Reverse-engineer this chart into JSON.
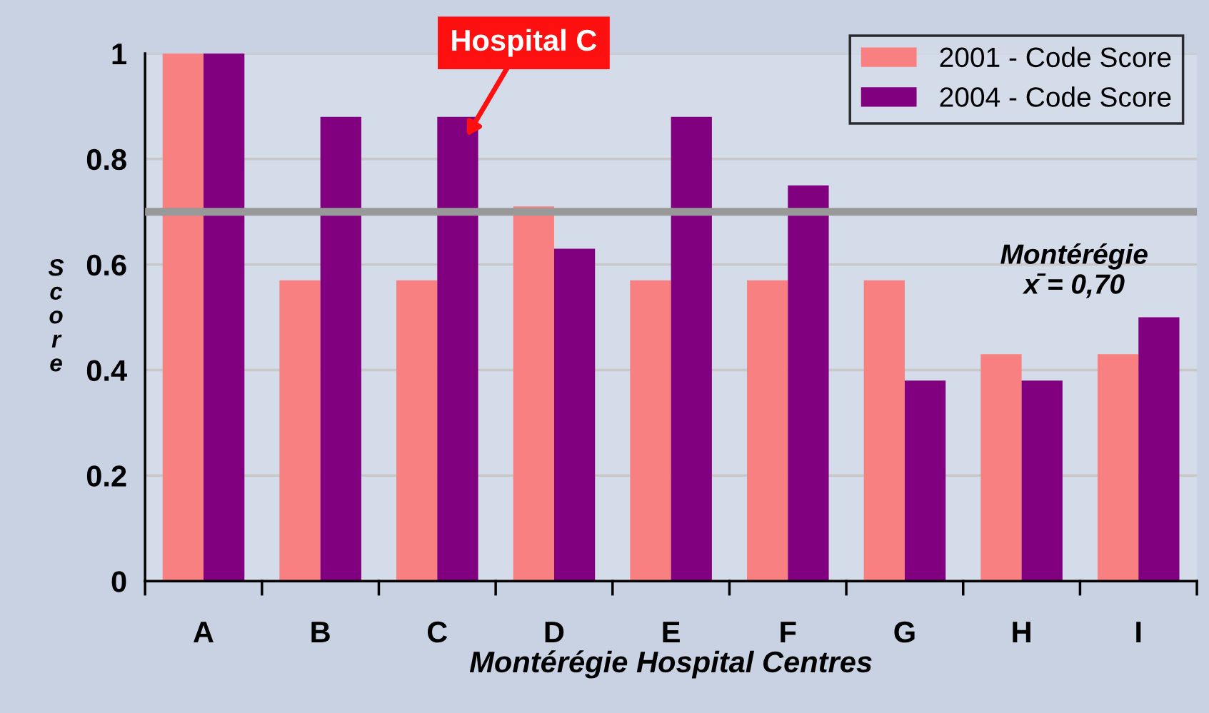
{
  "chart_data": {
    "type": "bar",
    "xlabel": "Montérégie Hospital Centres",
    "ylabel": "Score",
    "categories": [
      "A",
      "B",
      "C",
      "D",
      "E",
      "F",
      "G",
      "H",
      "I"
    ],
    "series": [
      {
        "name": "2001 - Code Score",
        "color": "#f98080",
        "values": [
          1.0,
          0.57,
          0.57,
          0.71,
          0.57,
          0.57,
          0.57,
          0.43,
          0.43
        ]
      },
      {
        "name": "2004 - Code Score",
        "color": "#800080",
        "values": [
          1.0,
          0.88,
          0.88,
          0.63,
          0.88,
          0.75,
          0.38,
          0.38,
          0.5
        ]
      }
    ],
    "ylim": [
      0,
      1
    ],
    "yticks": [
      0,
      0.2,
      0.4,
      0.6,
      0.8,
      1
    ],
    "grid": "y",
    "legend": "top right",
    "ref_lines": [
      {
        "axis": "y",
        "value": 0.7,
        "label": "Montérégie\nx̄ = 0,70",
        "color": "#999999"
      }
    ],
    "annotations": [
      "Hospital C"
    ]
  }
}
